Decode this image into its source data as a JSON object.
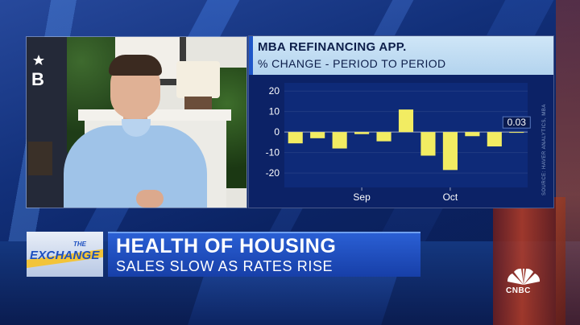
{
  "chart_data": {
    "type": "bar",
    "title": "MBA REFINANCING APP.",
    "subtitle": "% CHANGE - PERIOD TO PERIOD",
    "yticks": [
      "20",
      "10",
      "0",
      "-10",
      "-20"
    ],
    "ylim": [
      -27,
      24
    ],
    "xtick_labels": [
      "Sep",
      "Oct"
    ],
    "values": [
      -5.5,
      -3,
      -8,
      -1,
      -4.5,
      11,
      -11.5,
      -18.5,
      -2,
      -7,
      0.03
    ],
    "last_value_label": "0.03",
    "bar_color": "#f2ec62",
    "source_text": "SOURCE: HAVER ANALYTICS, MBA"
  },
  "lower_third": {
    "show_the": "THE",
    "show_name": "EXCHANGE",
    "headline": "HEALTH OF HOUSING",
    "subheadline": "SALES SLOW AS RATES RISE"
  },
  "network": {
    "logo_text": "CNBC"
  }
}
